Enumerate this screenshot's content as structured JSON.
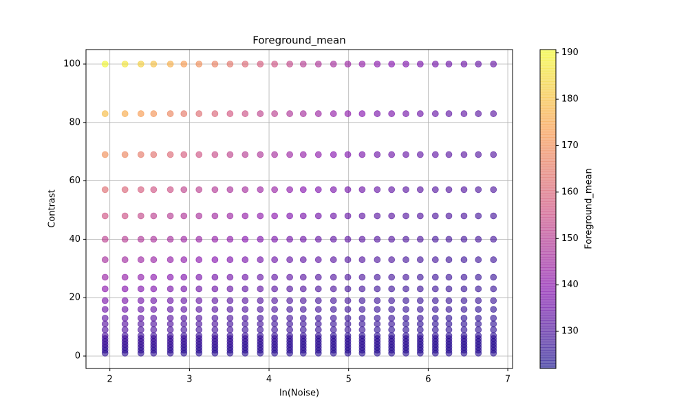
{
  "chart_data": {
    "type": "scatter",
    "title": "Foreground_mean",
    "x_label": "ln(Noise)",
    "y_label": "Contrast",
    "colorbar_label": "Foreground_mean",
    "x": [
      1.94,
      2.19,
      2.39,
      2.55,
      2.76,
      2.93,
      3.12,
      3.32,
      3.51,
      3.7,
      3.89,
      4.07,
      4.26,
      4.43,
      4.62,
      4.81,
      4.99,
      5.17,
      5.36,
      5.54,
      5.72,
      5.9,
      6.09,
      6.26,
      6.45,
      6.63,
      6.82
    ],
    "y": [
      100,
      83,
      69,
      57,
      48,
      40,
      33,
      27,
      23,
      19,
      16,
      13,
      11,
      9,
      7,
      6,
      5,
      4,
      3,
      2,
      1
    ],
    "values": [
      [
        190,
        187,
        183,
        180,
        177,
        173,
        170,
        167,
        164,
        161,
        158,
        156,
        153,
        150,
        148,
        146,
        144,
        142,
        140,
        139,
        138,
        137,
        136,
        135,
        135,
        134,
        134
      ],
      [
        179,
        176,
        173,
        171,
        168,
        165,
        162,
        160,
        157,
        155,
        152,
        151,
        148,
        146,
        144,
        142,
        141,
        139,
        137,
        137,
        136,
        135,
        134,
        133,
        133,
        132,
        132
      ],
      [
        170,
        168,
        165,
        163,
        161,
        158,
        156,
        154,
        152,
        150,
        148,
        146,
        144,
        142,
        141,
        139,
        138,
        137,
        135,
        135,
        134,
        133,
        133,
        132,
        132,
        131,
        131
      ],
      [
        162,
        160,
        158,
        156,
        155,
        152,
        151,
        149,
        147,
        146,
        144,
        143,
        141,
        139,
        138,
        137,
        136,
        135,
        134,
        133,
        132,
        132,
        131,
        131,
        131,
        130,
        130
      ],
      [
        156,
        155,
        153,
        151,
        150,
        148,
        147,
        145,
        144,
        142,
        141,
        140,
        138,
        137,
        136,
        135,
        134,
        133,
        132,
        132,
        131,
        131,
        130,
        130,
        130,
        129,
        129
      ],
      [
        151,
        150,
        148,
        147,
        146,
        144,
        143,
        142,
        141,
        139,
        138,
        137,
        136,
        135,
        134,
        133,
        133,
        132,
        131,
        131,
        130,
        130,
        129,
        129,
        129,
        129,
        129
      ],
      [
        146,
        145,
        144,
        143,
        142,
        141,
        140,
        139,
        138,
        137,
        136,
        135,
        134,
        133,
        133,
        132,
        131,
        131,
        130,
        130,
        129,
        129,
        129,
        128,
        128,
        128,
        128
      ],
      [
        143,
        142,
        141,
        140,
        139,
        138,
        137,
        136,
        136,
        135,
        134,
        133,
        133,
        132,
        131,
        131,
        130,
        130,
        129,
        129,
        129,
        128,
        128,
        128,
        128,
        127,
        127
      ],
      [
        140,
        139,
        138,
        138,
        137,
        136,
        135,
        135,
        134,
        133,
        133,
        132,
        131,
        131,
        130,
        130,
        129,
        129,
        128,
        128,
        128,
        128,
        128,
        127,
        127,
        127,
        127
      ],
      [
        137,
        137,
        136,
        135,
        135,
        134,
        134,
        133,
        132,
        132,
        131,
        131,
        130,
        130,
        129,
        129,
        129,
        128,
        128,
        128,
        127,
        127,
        127,
        127,
        127,
        127,
        127
      ],
      [
        135,
        135,
        134,
        134,
        133,
        133,
        132,
        132,
        131,
        131,
        130,
        130,
        129,
        129,
        129,
        128,
        128,
        128,
        127,
        127,
        127,
        127,
        127,
        127,
        127,
        126,
        126
      ],
      [
        133,
        133,
        133,
        132,
        132,
        131,
        131,
        130,
        130,
        130,
        129,
        129,
        129,
        128,
        128,
        128,
        127,
        127,
        127,
        127,
        127,
        127,
        126,
        126,
        126,
        126,
        126
      ],
      [
        132,
        132,
        131,
        131,
        131,
        130,
        130,
        130,
        129,
        129,
        129,
        128,
        128,
        128,
        128,
        127,
        127,
        127,
        127,
        127,
        126,
        126,
        126,
        126,
        126,
        126,
        126
      ],
      [
        131,
        131,
        130,
        130,
        130,
        129,
        129,
        129,
        129,
        128,
        128,
        128,
        128,
        127,
        127,
        127,
        127,
        127,
        126,
        126,
        126,
        126,
        126,
        126,
        126,
        126,
        126
      ],
      [
        130,
        129,
        129,
        129,
        129,
        128,
        128,
        128,
        128,
        128,
        127,
        127,
        127,
        127,
        127,
        126,
        126,
        126,
        126,
        126,
        126,
        126,
        126,
        126,
        126,
        126,
        126
      ],
      [
        129,
        129,
        128,
        128,
        128,
        128,
        128,
        128,
        127,
        127,
        127,
        127,
        127,
        127,
        126,
        126,
        126,
        126,
        126,
        126,
        126,
        126,
        126,
        126,
        126,
        126,
        126
      ],
      [
        128,
        128,
        128,
        128,
        128,
        127,
        127,
        127,
        127,
        127,
        127,
        127,
        126,
        126,
        126,
        126,
        126,
        126,
        126,
        126,
        126,
        126,
        126,
        126,
        126,
        125,
        125
      ],
      [
        128,
        127,
        127,
        127,
        127,
        127,
        127,
        127,
        127,
        126,
        126,
        126,
        126,
        126,
        126,
        126,
        126,
        126,
        126,
        126,
        126,
        125,
        125,
        125,
        125,
        125,
        125
      ],
      [
        127,
        127,
        127,
        127,
        127,
        126,
        126,
        126,
        126,
        126,
        126,
        126,
        126,
        126,
        126,
        126,
        126,
        126,
        125,
        125,
        125,
        125,
        125,
        125,
        125,
        125,
        125
      ],
      [
        126,
        126,
        126,
        126,
        126,
        126,
        126,
        126,
        126,
        126,
        126,
        126,
        126,
        126,
        125,
        125,
        125,
        125,
        125,
        125,
        125,
        125,
        125,
        125,
        125,
        125,
        125
      ],
      [
        126,
        126,
        126,
        126,
        126,
        125,
        125,
        125,
        125,
        125,
        125,
        125,
        125,
        125,
        125,
        125,
        125,
        125,
        125,
        125,
        125,
        125,
        125,
        125,
        125,
        125,
        125
      ]
    ],
    "colormap": "plasma",
    "alpha": 0.6,
    "xlim": [
      1.7,
      7.06
    ],
    "ylim": [
      -4.25,
      104.95
    ],
    "xticks": [
      2,
      3,
      4,
      5,
      6,
      7
    ],
    "yticks": [
      0,
      20,
      40,
      60,
      80,
      100
    ],
    "clim": [
      122,
      190.7
    ],
    "cticks": [
      130,
      140,
      150,
      160,
      170,
      180,
      190
    ],
    "grid": true
  }
}
